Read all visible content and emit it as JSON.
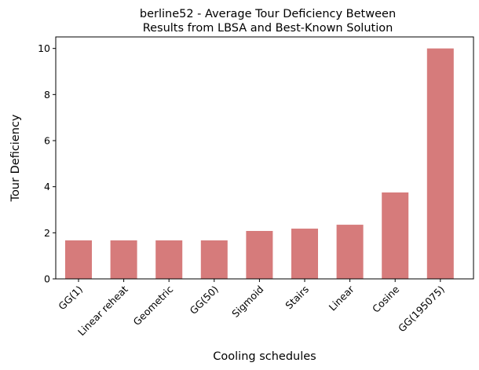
{
  "chart_data": {
    "type": "bar",
    "title_lines": [
      "berline52 - Average Tour Deficiency Between",
      " Results from LBSA and Best-Known Solution"
    ],
    "xlabel": "Cooling schedules",
    "ylabel": "Tour Deficiency",
    "categories": [
      "GG(1)",
      "Linear reheat",
      "Geometric",
      "GG(50)",
      "Sigmoid",
      "Stairs",
      "Linear",
      "Cosine",
      "GG(195075)"
    ],
    "values": [
      1.67,
      1.67,
      1.67,
      1.67,
      2.08,
      2.18,
      2.35,
      3.75,
      10.0
    ],
    "ylim": [
      0,
      10.5
    ],
    "yticks": [
      "0",
      "2",
      "4",
      "6",
      "8",
      "10"
    ],
    "bar_color": "#d67b7b",
    "grid": false,
    "legend": "none"
  }
}
